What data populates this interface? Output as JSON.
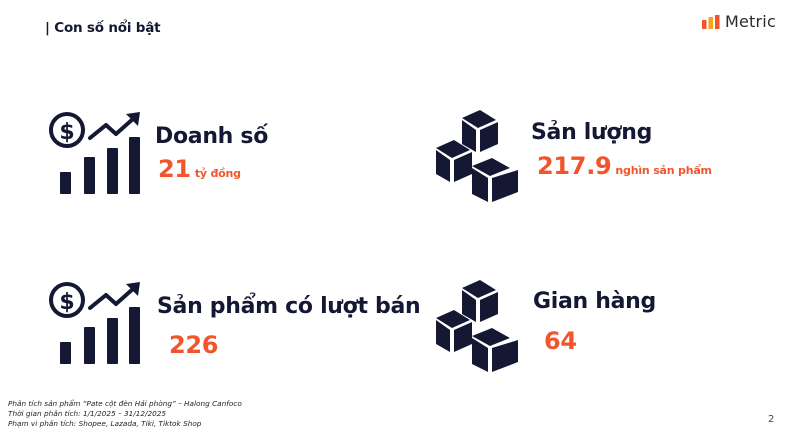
{
  "header": {
    "title": "| Con số nổi bật"
  },
  "logo": {
    "text": "Metric",
    "colors": [
      "#f2552c",
      "#f7a21b",
      "#f2552c"
    ]
  },
  "stats": {
    "revenue": {
      "title": "Doanh số",
      "value": "21",
      "unit": "tỷ đồng",
      "icon": "revenue-chart-icon"
    },
    "volume": {
      "title": "Sản lượng",
      "value": "217.9",
      "unit": "nghìn sản phẩm",
      "icon": "boxes-icon"
    },
    "products": {
      "title": "Sản phẩm có lượt bán",
      "value": "226",
      "icon": "revenue-chart-icon"
    },
    "shops": {
      "title": "Gian hàng",
      "value": "64",
      "icon": "boxes-icon"
    }
  },
  "footer": {
    "line1": "Phân tích sản phẩm “Pate cột đèn Hải phòng” – Halong Canfoco",
    "line2": "Thời gian phân tích: 1/1/2025 – 31/12/2025",
    "line3": "Phạm vi phân tích: Shopee, Lazada, Tiki, Tiktok Shop"
  },
  "page_number": "2",
  "colors": {
    "navy": "#141833",
    "accent": "#f2552c"
  }
}
